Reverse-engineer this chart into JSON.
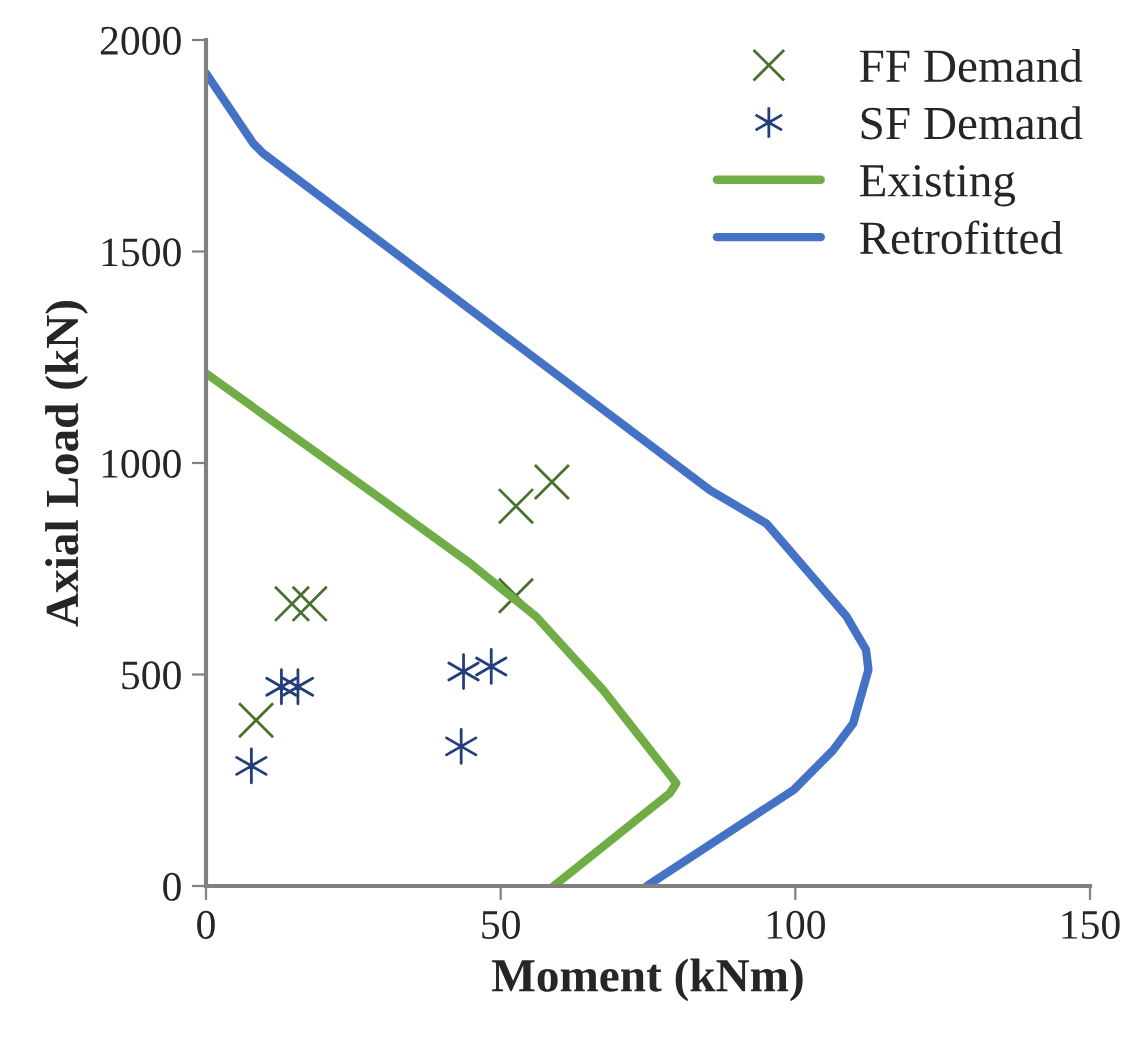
{
  "chart_data": {
    "type": "scatter",
    "xlabel": "Moment (kNm)",
    "ylabel": "Axial Load (kN)",
    "xlim": [
      0,
      150
    ],
    "ylim": [
      0,
      2000
    ],
    "xticks": [
      0,
      50,
      100,
      150
    ],
    "yticks": [
      0,
      500,
      1000,
      1500,
      2000
    ],
    "grid": false,
    "legend": "top right",
    "series": [
      {
        "name": "FF Demand",
        "marker": "cross",
        "color": "#4a7030",
        "x": [
          8.5,
          14.6,
          17.6,
          52.6,
          52.6,
          58.7
        ],
        "values": [
          392,
          667,
          667,
          686,
          898,
          955
        ]
      },
      {
        "name": "SF Demand",
        "color": "#233f7a",
        "x": [
          7.7,
          12.8,
          15.6,
          43.7,
          48.4,
          43.3
        ],
        "values": [
          284,
          471,
          471,
          507,
          519,
          330
        ]
      },
      {
        "name": "Existing",
        "type": "line",
        "marker": "none",
        "color": "#70ad47",
        "x": [
          0,
          30,
          44.8,
          56,
          67.4,
          79.8,
          78.7,
          59
        ],
        "values": [
          1212,
          912,
          763,
          637,
          463,
          243,
          219,
          0
        ]
      },
      {
        "name": "Retrofitted",
        "type": "line",
        "marker": "none",
        "color": "#4472c4",
        "x": [
          0,
          8,
          9.7,
          85.5,
          95.1,
          108.7,
          112,
          112.4,
          109.8,
          106.4,
          99.7,
          74.8
        ],
        "values": [
          1921,
          1756,
          1732,
          936,
          857,
          637,
          558,
          511,
          384,
          321,
          227,
          0
        ]
      }
    ]
  }
}
